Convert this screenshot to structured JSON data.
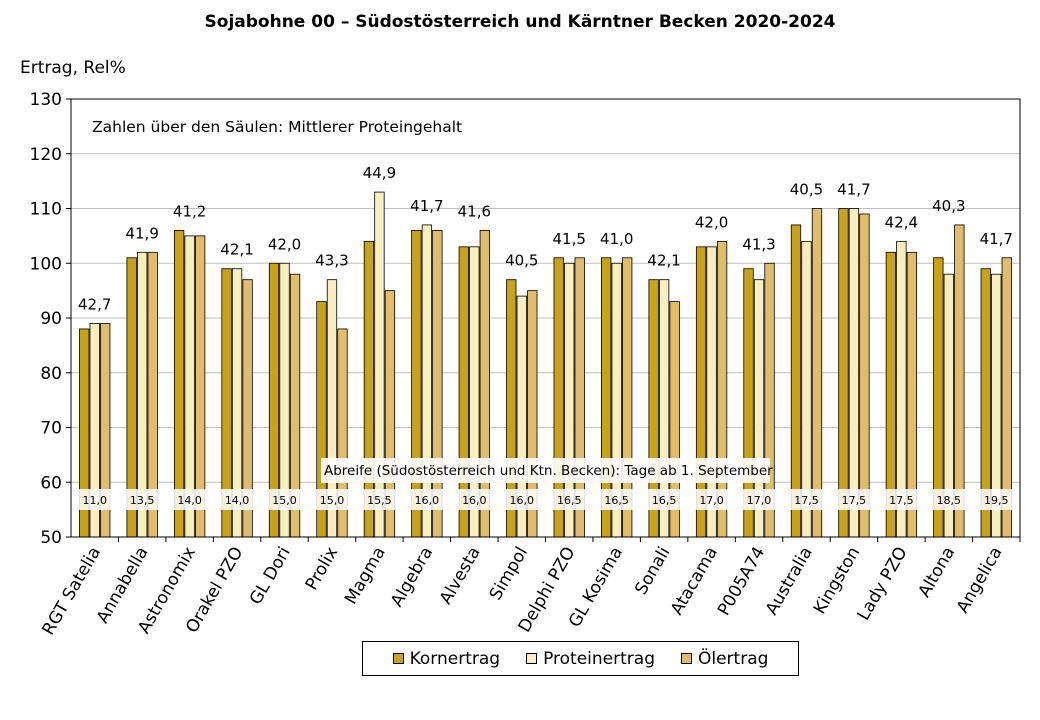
{
  "chart_data": {
    "type": "bar",
    "title": "Sojabohne 00 – Südostösterreich und Kärntner Becken 2020-2024",
    "ylabel": "Ertrag, Rel%",
    "xlabel": "",
    "ylim": [
      50,
      130
    ],
    "yticks": [
      50,
      60,
      70,
      80,
      90,
      100,
      110,
      120,
      130
    ],
    "grid": true,
    "legend_position": "bottom",
    "annotation_top": "Zahlen über den Säulen: Mittlerer Proteingehalt",
    "annotation_bottom": "Abreife (Südostösterreich und Ktn. Becken): Tage ab 1. September",
    "categories": [
      "RGT Satelia",
      "Annabella",
      "Astronomix",
      "Orakel PZO",
      "GL Dori",
      "Prolix",
      "Magma",
      "Algebra",
      "Alvesta",
      "Simpol",
      "Delphi PZO",
      "GL Kosima",
      "Sonali",
      "Atacama",
      "P005A74",
      "Australia",
      "Kingston",
      "Lady PZO",
      "Altona",
      "Angelica"
    ],
    "series": [
      {
        "name": "Kornertrag",
        "color": "#c9a21b",
        "values": [
          88,
          101,
          106,
          99,
          100,
          93,
          104,
          106,
          103,
          97,
          101,
          101,
          97,
          103,
          99,
          107,
          110,
          102,
          101,
          99
        ]
      },
      {
        "name": "Proteinertrag",
        "color": "#f8eec0",
        "values": [
          89,
          102,
          105,
          99,
          100,
          97,
          113,
          107,
          103,
          94,
          100,
          100,
          97,
          103,
          97,
          104,
          110,
          104,
          98,
          98
        ]
      },
      {
        "name": "Ölertrag",
        "color": "#dfbd6d",
        "values": [
          89,
          102,
          105,
          97,
          98,
          88,
          95,
          106,
          106,
          95,
          101,
          101,
          93,
          104,
          100,
          110,
          109,
          102,
          107,
          101
        ]
      }
    ],
    "protein_labels": [
      "42,7",
      "41,9",
      "41,2",
      "42,1",
      "42,0",
      "43,3",
      "44,9",
      "41,7",
      "41,6",
      "40,5",
      "41,5",
      "41,0",
      "42,1",
      "42,0",
      "41,3",
      "40,5",
      "41,7",
      "42,4",
      "40,3",
      "41,7"
    ],
    "maturity_labels": [
      "11,0",
      "13,5",
      "14,0",
      "14,0",
      "15,0",
      "15,0",
      "15,5",
      "16,0",
      "16,0",
      "16,0",
      "16,5",
      "16,5",
      "16,5",
      "17,0",
      "17,0",
      "17,5",
      "17,5",
      "17,5",
      "18,5",
      "19,5"
    ]
  }
}
